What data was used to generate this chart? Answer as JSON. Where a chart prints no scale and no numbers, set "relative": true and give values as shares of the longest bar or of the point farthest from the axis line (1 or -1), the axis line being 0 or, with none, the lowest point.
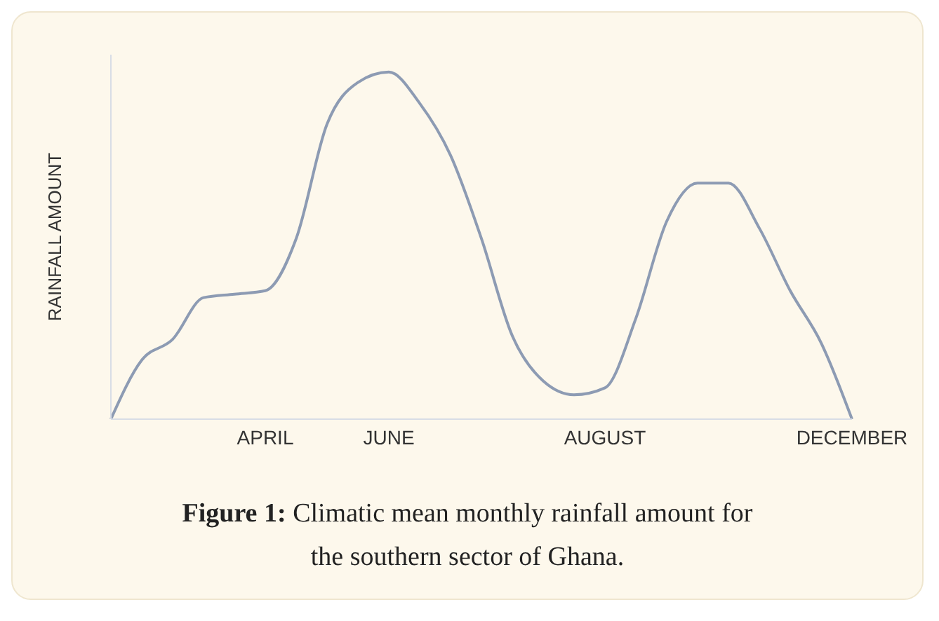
{
  "chart_data": {
    "type": "line",
    "relative": true,
    "ylabel": "RAINFALL AMOUNT",
    "categories": [
      null,
      null,
      null,
      null,
      null,
      "APRIL",
      null,
      null,
      null,
      "JUNE",
      null,
      null,
      null,
      null,
      null,
      null,
      "AUGUST",
      null,
      null,
      null,
      null,
      null,
      null,
      null,
      "DECEMBER"
    ],
    "series": [
      {
        "color": "#8d9bb3",
        "values": [
          0,
          0.17,
          0.23,
          0.35,
          0.36,
          0.37,
          0.52,
          0.85,
          0.97,
          1,
          0.91,
          0.76,
          0.52,
          0.24,
          0.11,
          0.07,
          0.09,
          0.29,
          0.57,
          0.68,
          0.68,
          0.55,
          0.37,
          0.22,
          0
        ]
      }
    ],
    "grid": false,
    "legend": false,
    "marker": "none",
    "line_style": "solid",
    "annotations": [
      "Figure 1: Climatic mean monthly rainfall amount for the southern sector of Ghana."
    ]
  }
}
